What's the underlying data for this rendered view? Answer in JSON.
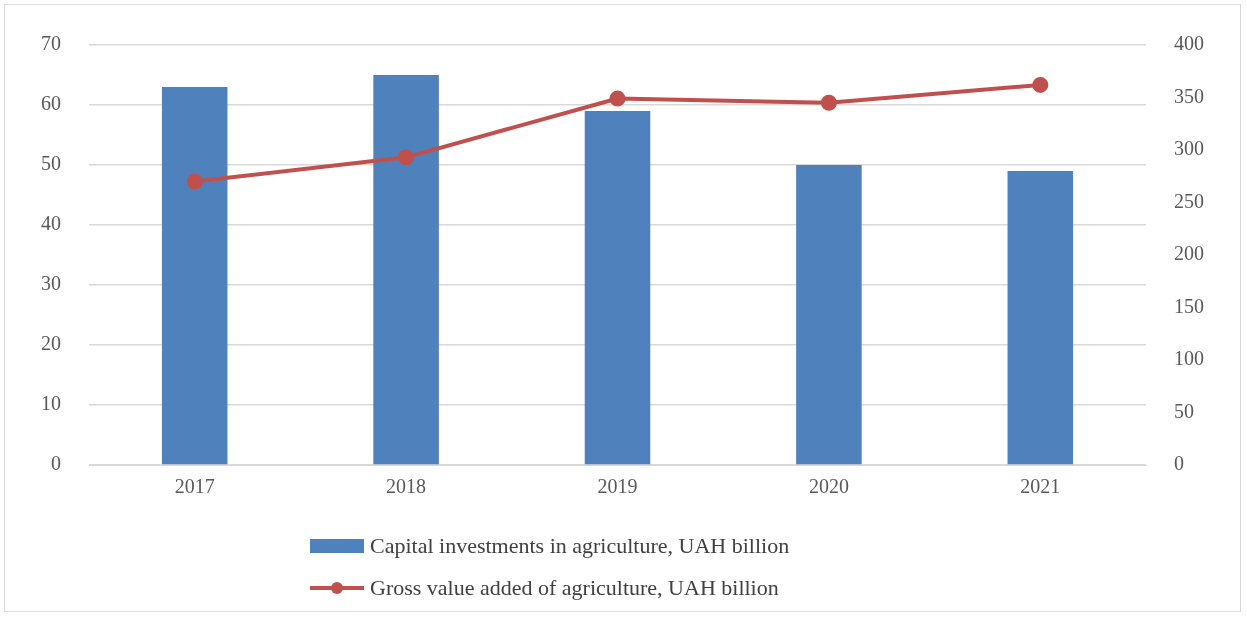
{
  "chart_data": {
    "type": "bar",
    "categories": [
      "2017",
      "2018",
      "2019",
      "2020",
      "2021"
    ],
    "series": [
      {
        "name": "Capital investments in agriculture, UAH billion",
        "color": "#4f81bd",
        "values": [
          63,
          65,
          59,
          50,
          49
        ]
      },
      {
        "name": "Gross value added of agriculture, UAH billion",
        "type": "line",
        "axis": "y2",
        "color": "#c0504d",
        "values": [
          270,
          293,
          349,
          345,
          362
        ]
      }
    ],
    "ylim": [
      0,
      70
    ],
    "yticks": [
      0,
      10,
      20,
      30,
      40,
      50,
      60,
      70
    ],
    "y2lim": [
      0,
      400
    ],
    "y2ticks": [
      0,
      50,
      100,
      150,
      200,
      250,
      300,
      350,
      400
    ],
    "grid": "y",
    "legend": "bottom",
    "marker": "circle"
  }
}
